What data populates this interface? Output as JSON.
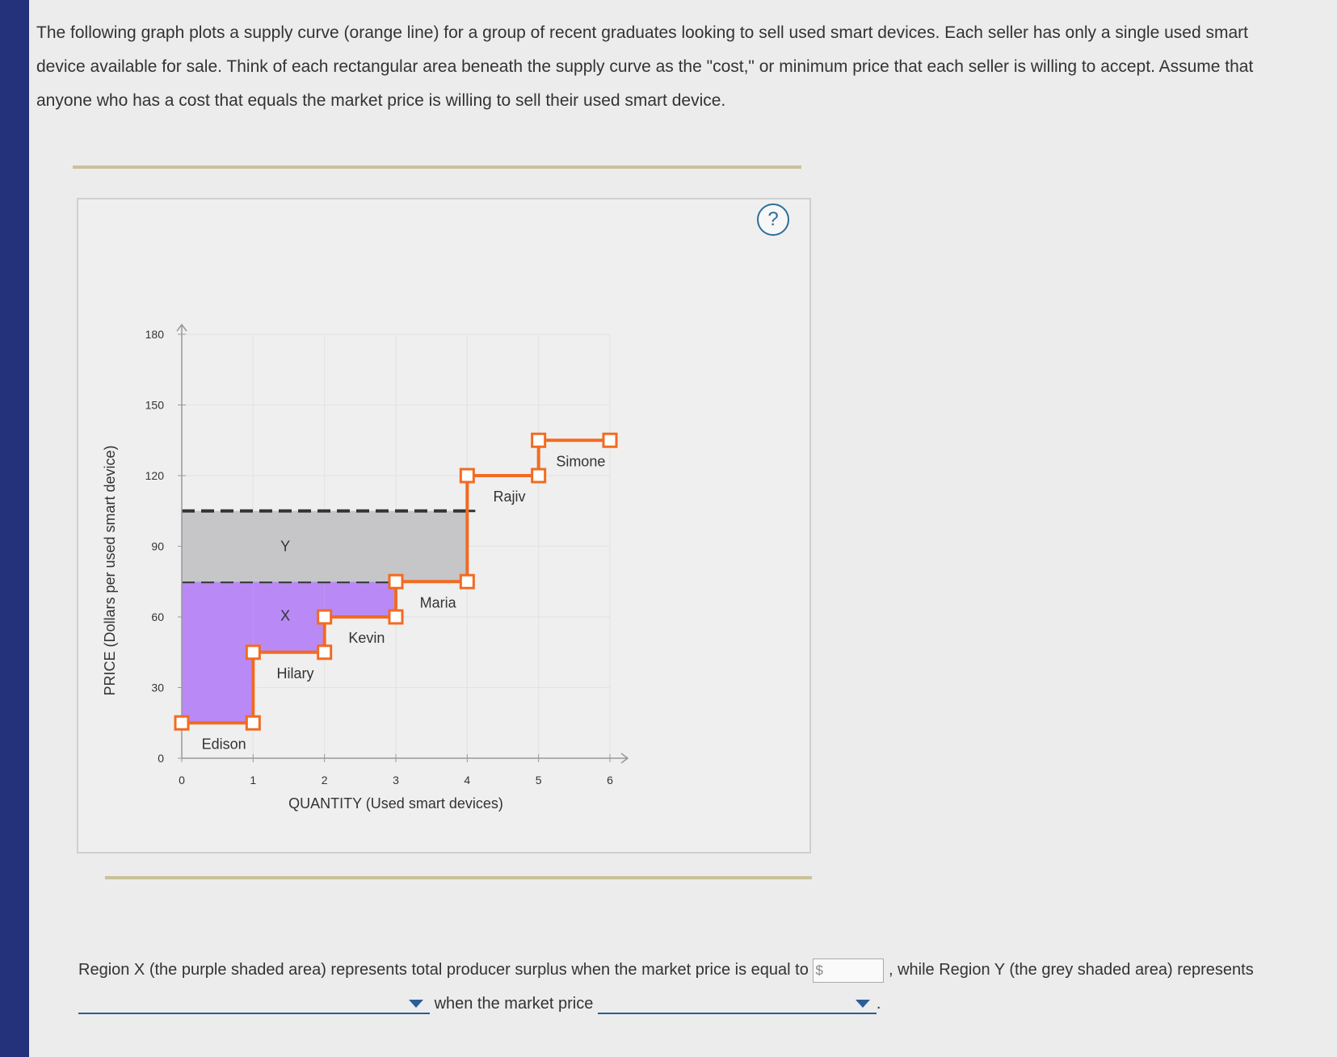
{
  "instructions": "The following graph plots a supply curve (orange line) for a group of recent graduates looking to sell used smart devices. Each seller has only a single used smart device available for sale. Think of each rectangular area beneath the supply curve as the \"cost,\" or minimum price that each seller is willing to accept. Assume that anyone who has a cost that equals the market price is willing to sell their used smart device.",
  "help_button": "?",
  "chart_data": {
    "type": "step",
    "x_label": "QUANTITY (Used smart devices)",
    "y_label": "PRICE (Dollars per used smart device)",
    "categories": [
      "Edison",
      "Hilary",
      "Kevin",
      "Maria",
      "Rajiv",
      "Simone"
    ],
    "values": [
      15,
      45,
      60,
      75,
      120,
      135
    ],
    "color": "#f26b21",
    "xlim": [
      0,
      6
    ],
    "xticks": [
      0,
      1,
      2,
      3,
      4,
      5,
      6
    ],
    "ylim": [
      0,
      180
    ],
    "yticks": [
      0,
      30,
      60,
      90,
      120,
      150,
      180
    ],
    "regions": [
      {
        "label": "X",
        "price": 75,
        "color": "#b98af5"
      },
      {
        "label": "Y",
        "price": 105,
        "color": "#c6c6c8"
      }
    ]
  },
  "question": {
    "part1": "Region X (the purple shaded area) represents total producer surplus when the market price is equal to",
    "currency": "$",
    "part2": ", while Region Y (the grey shaded area) represents",
    "part3": "when the market price",
    "end": "."
  }
}
